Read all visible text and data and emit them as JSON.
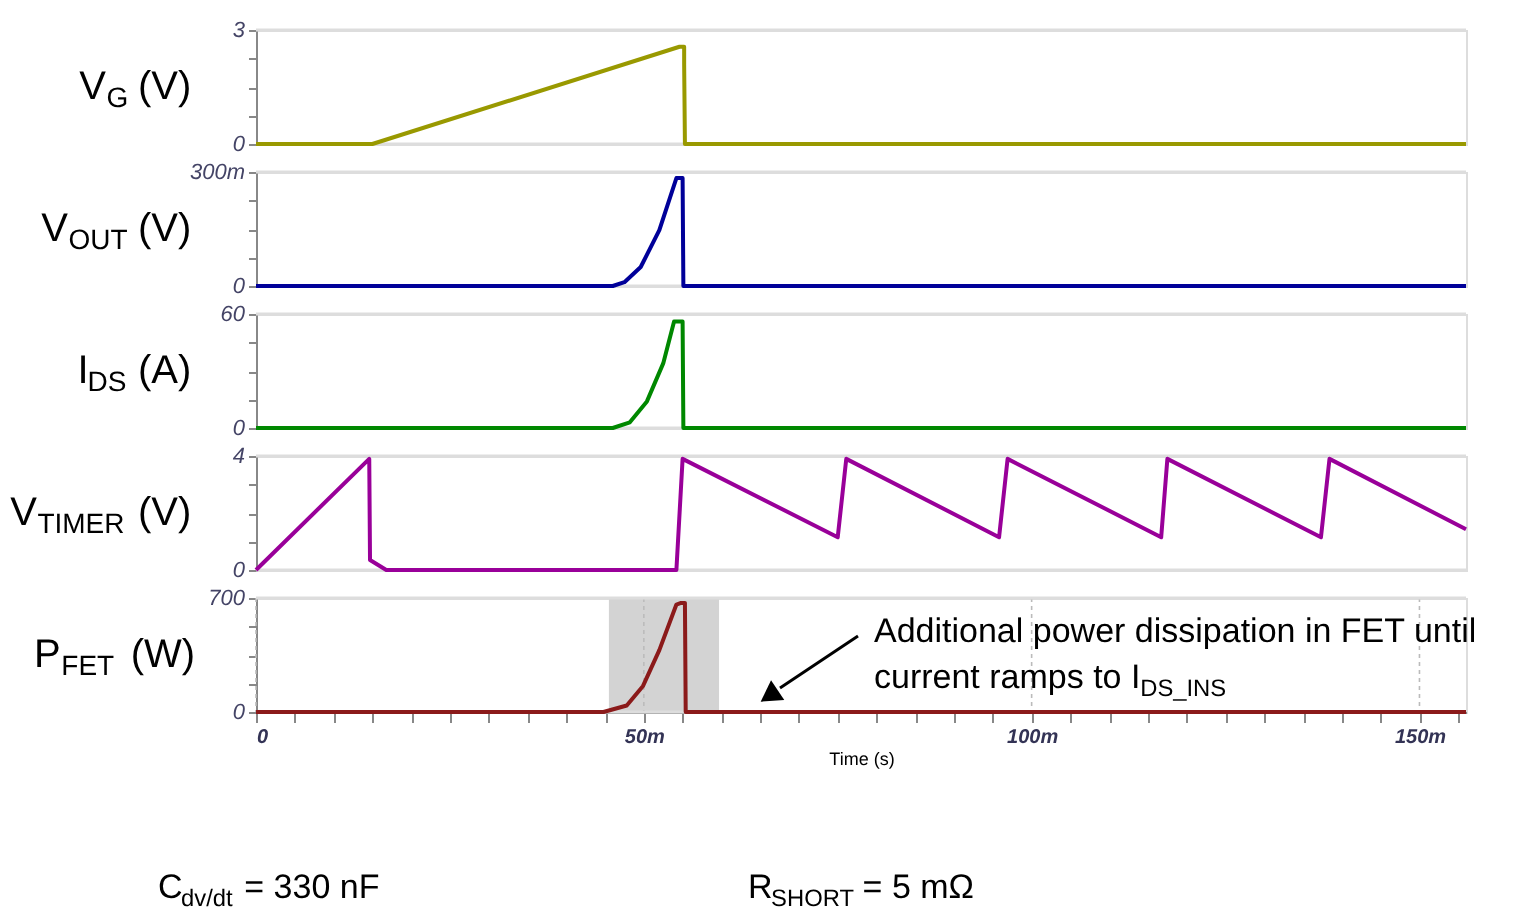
{
  "chart_data": [
    {
      "type": "line",
      "ylabel": "V$_{G}$ (V)",
      "xlim": [
        0,
        156
      ],
      "xticks": [
        0,
        50,
        100,
        150
      ],
      "ylim": [
        0,
        3
      ],
      "yticks": [
        0,
        {
          "value": 0.75,
          "label": null
        },
        {
          "value": 1.5,
          "label": null
        },
        {
          "value": 2.25,
          "label": null
        },
        3
      ],
      "grid": true,
      "tick_labels": "y",
      "x": [
        0,
        15,
        54.6,
        55.2,
        55.2,
        55.3,
        156
      ],
      "series": [
        {
          "color": "#999900",
          "values": [
            0,
            0,
            2.56,
            2.56,
            2.1,
            0,
            0
          ]
        }
      ]
    },
    {
      "type": "line",
      "ylabel": "V$_{OUT}$ (V)",
      "xlim": [
        0,
        156
      ],
      "xticks": [
        0,
        50,
        100,
        150
      ],
      "ylim": [
        0,
        300
      ],
      "yticks": [
        0,
        {
          "value": 75,
          "label": null
        },
        {
          "value": 150,
          "label": null
        },
        {
          "value": 225,
          "label": null
        },
        {
          "value": 300,
          "label": "300m"
        }
      ],
      "grid": true,
      "tick_labels": "y",
      "x": [
        0,
        46,
        47.5,
        49.6,
        52,
        54.2,
        55,
        55.1,
        156
      ],
      "series": [
        {
          "color": "#000099",
          "values": [
            0,
            0,
            10,
            50,
            147,
            284,
            284,
            0,
            0
          ]
        }
      ]
    },
    {
      "type": "line",
      "ylabel": "I$_{DS}$ (A)",
      "xlim": [
        0,
        156
      ],
      "xticks": [
        0,
        50,
        100,
        150
      ],
      "ylim": [
        0,
        60
      ],
      "yticks": [
        0,
        {
          "value": 15,
          "label": null
        },
        {
          "value": 30,
          "label": null
        },
        {
          "value": 45,
          "label": null
        },
        60
      ],
      "grid": true,
      "tick_labels": "y",
      "x": [
        0,
        46,
        48.2,
        50.4,
        52.5,
        53.9,
        55,
        55.1,
        156
      ],
      "series": [
        {
          "color": "#008800",
          "values": [
            0,
            0,
            3,
            14,
            34,
            56,
            56,
            0,
            0
          ]
        }
      ]
    },
    {
      "type": "line",
      "ylabel": "V$_{TIMER}$ (V)",
      "xlim": [
        0,
        156
      ],
      "xticks": [
        0,
        50,
        100,
        150
      ],
      "ylim": [
        0,
        4
      ],
      "yticks": [
        0,
        {
          "value": 1,
          "label": null
        },
        {
          "value": 2,
          "label": null
        },
        {
          "value": 3,
          "label": null
        },
        4
      ],
      "grid": true,
      "tick_labels": "y",
      "x": [
        0,
        14.6,
        14.7,
        16.8,
        54.2,
        55,
        75,
        76.1,
        95.8,
        96.9,
        116.7,
        117.5,
        137.3,
        138.4,
        156
      ],
      "series": [
        {
          "color": "#990099",
          "values": [
            0,
            3.9,
            0.35,
            0,
            0,
            3.9,
            1.15,
            3.9,
            1.15,
            3.9,
            1.15,
            3.9,
            1.15,
            3.9,
            1.43
          ]
        }
      ]
    },
    {
      "type": "line",
      "ylabel": "P$_{FET}$ (W)",
      "xlabel": "Time (s)",
      "xlim": [
        0,
        156
      ],
      "xticks": [
        0,
        {
          "value": 5,
          "label": null
        },
        {
          "value": 10,
          "label": null
        },
        {
          "value": 15,
          "label": null
        },
        {
          "value": 20,
          "label": null
        },
        {
          "value": 25,
          "label": null
        },
        {
          "value": 30,
          "label": null
        },
        {
          "value": 35,
          "label": null
        },
        {
          "value": 40,
          "label": null
        },
        {
          "value": 45,
          "label": null
        },
        {
          "value": 50,
          "label": "50m"
        },
        {
          "value": 55,
          "label": null
        },
        {
          "value": 60,
          "label": null
        },
        {
          "value": 65,
          "label": null
        },
        {
          "value": 70,
          "label": null
        },
        {
          "value": 75,
          "label": null
        },
        {
          "value": 80,
          "label": null
        },
        {
          "value": 85,
          "label": null
        },
        {
          "value": 90,
          "label": null
        },
        {
          "value": 95,
          "label": null
        },
        {
          "value": 100,
          "label": "100m"
        },
        {
          "value": 105,
          "label": null
        },
        {
          "value": 110,
          "label": null
        },
        {
          "value": 115,
          "label": null
        },
        {
          "value": 120,
          "label": null
        },
        {
          "value": 125,
          "label": null
        },
        {
          "value": 130,
          "label": null
        },
        {
          "value": 135,
          "label": null
        },
        {
          "value": 140,
          "label": null
        },
        {
          "value": 145,
          "label": null
        },
        {
          "value": 150,
          "label": "150m"
        },
        {
          "value": 155,
          "label": null
        }
      ],
      "ylim": [
        0,
        700
      ],
      "yticks": [
        0,
        {
          "value": 175,
          "label": null
        },
        {
          "value": 350,
          "label": null
        },
        {
          "value": 525,
          "label": null
        },
        700
      ],
      "grid": true,
      "x": [
        0,
        44.8,
        47.8,
        49.9,
        52,
        54.2,
        54.8,
        55.3,
        55.4,
        156
      ],
      "series": [
        {
          "color": "#8b1a1a",
          "values": [
            0,
            0,
            40,
            160,
            380,
            660,
            670,
            670,
            0,
            0
          ]
        }
      ],
      "bands": [
        {
          "axis": "x",
          "from": 45.5,
          "to": 59.7,
          "color": "#d3d3d3"
        }
      ],
      "annotations": [
        "Additional power dissipation in FET until current ramps to I$_{DS_INS}$",
        "C$_{dv/dt}$ = 330 nF",
        "R$_{SHORT}$ = 5 mΩ"
      ]
    }
  ]
}
